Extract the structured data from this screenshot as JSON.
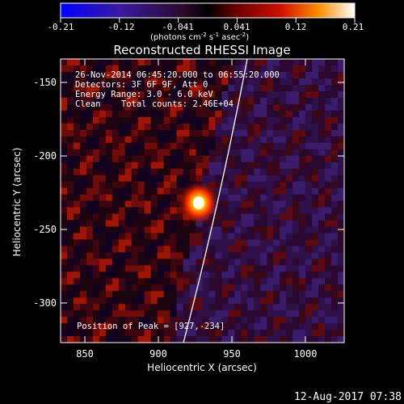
{
  "colorbar": {
    "ticks": [
      "-0.21",
      "-0.12",
      "-0.041",
      "0.041",
      "0.12",
      "0.21"
    ],
    "units_prefix": "(photons cm",
    "units_exp1": "-2",
    "units_mid": " s",
    "units_exp2": "-1",
    "units_mid2": " asec",
    "units_exp3": "-2",
    "units_suffix": ")"
  },
  "title": "Reconstructed RHESSI Image",
  "info": {
    "line1": "26-Nov-2014 06:45:20.000 to 06:55:20.000",
    "line2": "Detectors: 3F 6F 9F, Att 0",
    "line3": "Energy Range: 3.0 - 6.0 keV",
    "line4": "Clean    Total counts: 2.46E+04"
  },
  "peak_label": "Position of Peak = [927,-234]",
  "x_axis": {
    "label": "Heliocentric X (arcsec)",
    "ticks": [
      "850",
      "900",
      "950",
      "1000"
    ]
  },
  "y_axis": {
    "label": "Heliocentric Y (arcsec)",
    "ticks": [
      "-150",
      "-200",
      "-250",
      "-300"
    ]
  },
  "timestamp": "12-Aug-2017 07:38",
  "source_peak": {
    "x": 927,
    "y": -234
  },
  "x_range": [
    832,
    1024
  ],
  "y_range": [
    -325,
    -133
  ]
}
